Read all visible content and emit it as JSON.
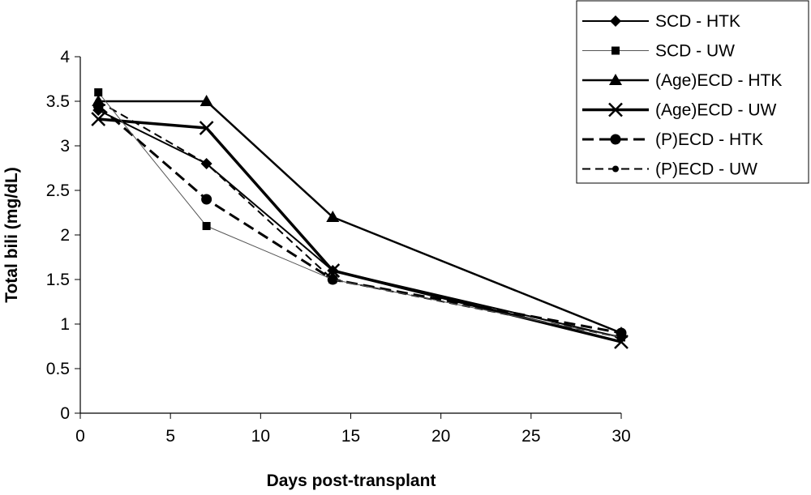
{
  "chart_data": {
    "type": "line",
    "xlabel": "Days post-transplant",
    "ylabel": "Total bili (mg/dL)",
    "xlim": [
      0,
      30
    ],
    "ylim": [
      0,
      4
    ],
    "x_ticks": [
      "0",
      "5",
      "10",
      "15",
      "20",
      "25",
      "30"
    ],
    "y_ticks": [
      "0",
      "0.5",
      "1",
      "1.5",
      "2",
      "2.5",
      "3",
      "3.5",
      "4"
    ],
    "x": [
      1,
      7,
      14,
      30
    ],
    "grid": false,
    "legend_position": "top-right",
    "series": [
      {
        "name": "SCD - HTK",
        "values": [
          3.4,
          2.8,
          1.6,
          0.85
        ],
        "marker": "diamond",
        "line": "solid-thin"
      },
      {
        "name": "SCD - UW",
        "values": [
          3.6,
          2.1,
          1.5,
          0.85
        ],
        "marker": "square",
        "line": "solid-hairline"
      },
      {
        "name": "(Age)ECD - HTK",
        "values": [
          3.5,
          3.5,
          2.2,
          0.9
        ],
        "marker": "triangle",
        "line": "solid-medium"
      },
      {
        "name": "(Age)ECD - UW",
        "values": [
          3.3,
          3.2,
          1.6,
          0.8
        ],
        "marker": "x",
        "line": "solid-thick"
      },
      {
        "name": "(P)ECD - HTK",
        "values": [
          3.45,
          2.4,
          1.5,
          0.9
        ],
        "marker": "circle",
        "line": "dashed-thick"
      },
      {
        "name": "(P)ECD - UW",
        "values": [
          3.5,
          2.8,
          1.5,
          0.85
        ],
        "marker": "circle-small",
        "line": "dashed-thin"
      }
    ]
  }
}
